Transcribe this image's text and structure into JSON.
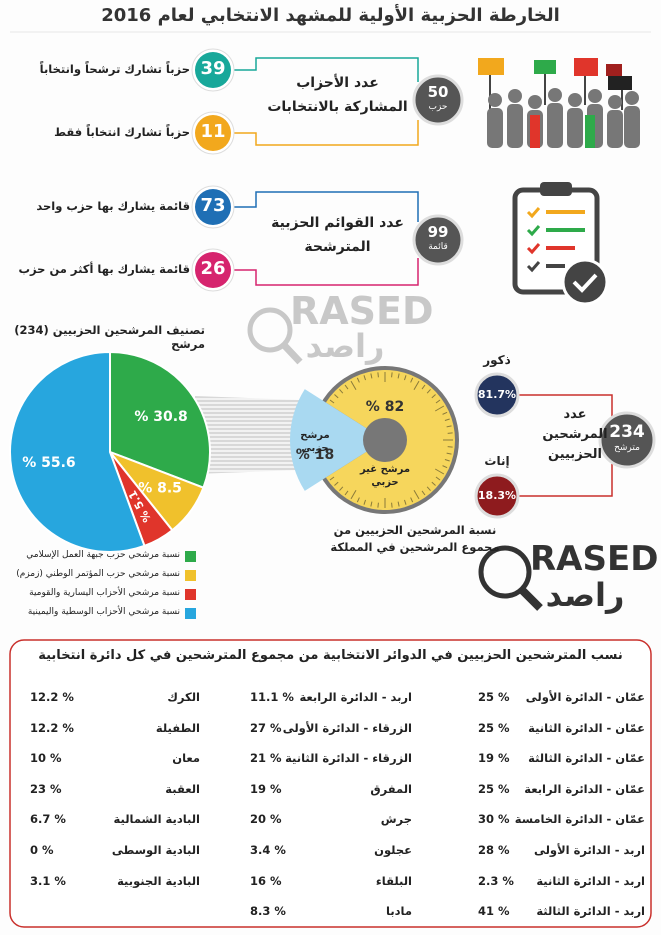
{
  "header": {
    "title": "الخارطة الحزبية الأولية للمشهد الانتخابي لعام 2016"
  },
  "parties": {
    "title": "عدد الأحزاب المشاركة بالانتخابات",
    "total": "50",
    "total_unit": "حزب",
    "items": [
      {
        "value": "39",
        "label": "حزباً تشارك ترشحاً وانتخاباً"
      },
      {
        "value": "11",
        "label": "حزباً تشارك انتخاباً فقط"
      }
    ]
  },
  "lists": {
    "title": "عدد القوائم الحزبية المترشحة",
    "total": "99",
    "total_unit": "قائمة",
    "items": [
      {
        "value": "73",
        "label": "قائمة يشارك بها حزب واحد"
      },
      {
        "value": "26",
        "label": "قائمة يشارك بها أكثر من حزب"
      }
    ]
  },
  "candidates": {
    "title": "عدد المرشحين الحزبيين",
    "total": "234",
    "total_unit": "مترشح",
    "male": {
      "label": "ذكور",
      "value": "81.7%"
    },
    "female": {
      "label": "إناث",
      "value": "18.3%"
    }
  },
  "brand": {
    "latin": "RASED",
    "arabic": "راصد"
  },
  "chart_data": [
    {
      "type": "pie",
      "title": "تصنيف المرشحين الحزبيين (234) مرشح",
      "categories": [
        "نسبة مرشحي حزب جبهة العمل الإسلامي",
        "نسبة مرشحي حزب المؤتمر الوطني (زمزم)",
        "نسبة مرشحي الأحزاب اليسارية والقومية",
        "نسبة مرشحي الأحزاب الوسطية واليمينية"
      ],
      "values": [
        30.8,
        8.5,
        5.1,
        55.6
      ],
      "value_labels": [
        "% 30.8",
        "% 8.5",
        "% 5.1",
        "% 55.6"
      ],
      "colors": [
        "#2eaa4a",
        "#f0c12c",
        "#e0352b",
        "#27a6de"
      ]
    },
    {
      "type": "gauge",
      "title": "نسبة المرشحين الحزبيين من مجموع المرشحين في المملكة",
      "categories": [
        "مرشح غير حزبي",
        "مرشح حزبي"
      ],
      "values": [
        82,
        18
      ],
      "value_labels": [
        "% 82",
        "% 18"
      ],
      "colors": [
        "#f6d65c",
        "#a9d9f1"
      ]
    }
  ],
  "districts": {
    "title": "نسب المترشحين الحزبيين في الدوائر الانتخابية من مجموع المترشحين في كل دائرة انتخابية",
    "columns": [
      [
        {
          "name": "عمّان - الدائرة الأولى",
          "value": "25 %"
        },
        {
          "name": "عمّان - الدائرة الثانية",
          "value": "25 %"
        },
        {
          "name": "عمّان - الدائرة الثالثة",
          "value": "19 %"
        },
        {
          "name": "عمّان - الدائرة الرابعة",
          "value": "25 %"
        },
        {
          "name": "عمّان - الدائرة الخامسة",
          "value": "30 %"
        },
        {
          "name": "اربد - الدائرة الأولى",
          "value": "28 %"
        },
        {
          "name": "اربد - الدائرة الثانية",
          "value": "2.3 %"
        },
        {
          "name": "اربد - الدائرة الثالثة",
          "value": "41 %"
        }
      ],
      [
        {
          "name": "اربد - الدائرة الرابعة",
          "value": "11.1 %"
        },
        {
          "name": "الزرقاء - الدائرة الأولى",
          "value": "27 %"
        },
        {
          "name": "الزرقاء - الدائرة الثانية",
          "value": "21 %"
        },
        {
          "name": "المفرق",
          "value": "19 %"
        },
        {
          "name": "جرش",
          "value": "20 %"
        },
        {
          "name": "عجلون",
          "value": "3.4 %"
        },
        {
          "name": "البلقاء",
          "value": "16 %"
        },
        {
          "name": "مادبا",
          "value": "8.3 %"
        }
      ],
      [
        {
          "name": "الكرك",
          "value": "12.2 %"
        },
        {
          "name": "الطفيلة",
          "value": "12.2 %"
        },
        {
          "name": "معان",
          "value": "10 %"
        },
        {
          "name": "العقبة",
          "value": "23 %"
        },
        {
          "name": "البادية الشمالية",
          "value": "6.7 %"
        },
        {
          "name": "البادية الوسطى",
          "value": "0 %"
        },
        {
          "name": "البادية الجنوبية",
          "value": "3.1 %"
        }
      ]
    ]
  }
}
